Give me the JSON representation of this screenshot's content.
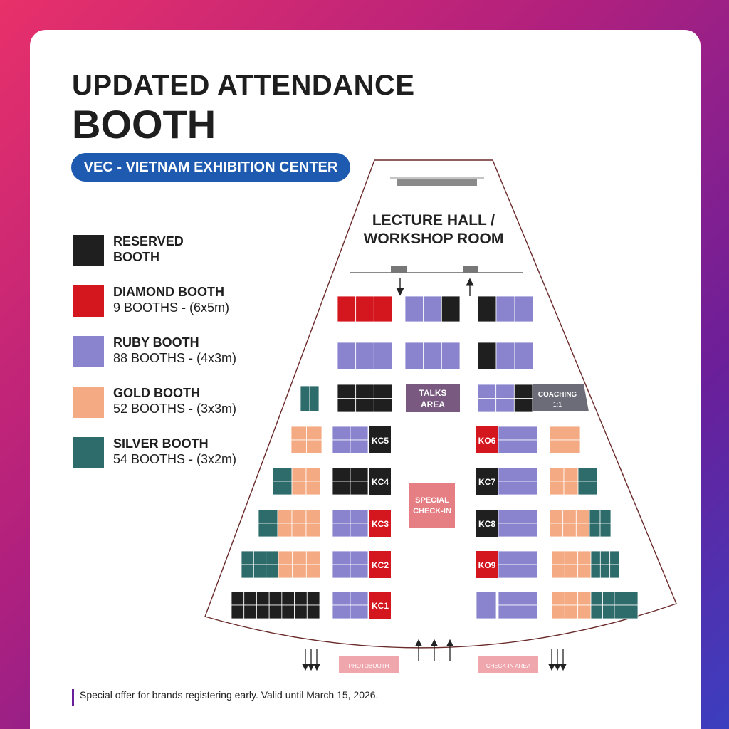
{
  "title_line1": "UPDATED ATTENDANCE",
  "title_line2": "BOOTH",
  "venue": "VEC - VIETNAM EXHIBITION CENTER",
  "legend": [
    {
      "name": "RESERVED",
      "name2": "BOOTH",
      "detail": "",
      "color": "#1f1f1f"
    },
    {
      "name": "DIAMOND BOOTH",
      "detail": "9 BOOTHS - (6x5m)",
      "color": "#d4161e"
    },
    {
      "name": "RUBY BOOTH",
      "detail": "88 BOOTHS - (4x3m)",
      "color": "#8a84cf"
    },
    {
      "name": "GOLD BOOTH",
      "detail": "52 BOOTHS - (3x3m)",
      "color": "#f4ab84"
    },
    {
      "name": "SILVER BOOTH",
      "detail": "54 BOOTHS - (3x2m)",
      "color": "#2e6b6b"
    }
  ],
  "map": {
    "lecture_hall_line1": "LECTURE HALL /",
    "lecture_hall_line2": "WORKSHOP ROOM",
    "talks_line1": "TALKS",
    "talks_line2": "AREA",
    "coaching_line1": "COACHING",
    "coaching_line2": "1:1",
    "special_line1": "SPECIAL",
    "special_line2": "CHECK-IN",
    "photobooth": "PHOTOBOOTH",
    "checkin_area": "CHECK-IN AREA",
    "kc_labels": [
      "KC5",
      "KC4",
      "KC3",
      "KC2",
      "KC1",
      "KO6",
      "KC7",
      "KC8",
      "KO9"
    ]
  },
  "footer": "Special offer for brands registering early. Valid until March 15, 2026."
}
